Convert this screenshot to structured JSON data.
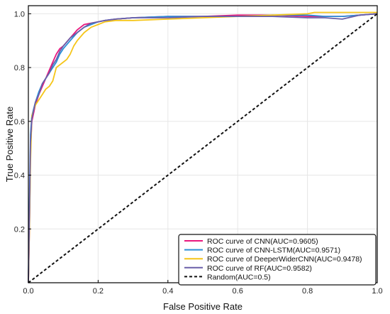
{
  "chart_data": {
    "type": "line",
    "title": "",
    "xlabel": "False Positive Rate",
    "ylabel": "True Positive Rate",
    "xlim": [
      0,
      1
    ],
    "ylim": [
      0,
      1.03
    ],
    "xticks": [
      "0.0",
      "0.2",
      "0.4",
      "0.6",
      "0.8",
      "1.0"
    ],
    "yticks": [
      "0.2",
      "0.4",
      "0.6",
      "0.8",
      "1.0"
    ],
    "grid": true,
    "legend_position": "lower-right",
    "series": [
      {
        "name": "ROC curve of CNN(AUC=0.9605)",
        "color": "#e8177e",
        "dash": "solid",
        "x": [
          0,
          0.003,
          0.006,
          0.01,
          0.02,
          0.03,
          0.04,
          0.05,
          0.06,
          0.07,
          0.08,
          0.09,
          0.1,
          0.12,
          0.14,
          0.16,
          0.18,
          0.2,
          0.22,
          0.25,
          0.3,
          0.4,
          0.5,
          0.6,
          0.7,
          0.8,
          0.85,
          0.9,
          0.95,
          1.0
        ],
        "y": [
          0,
          0.2,
          0.5,
          0.6,
          0.66,
          0.7,
          0.73,
          0.76,
          0.79,
          0.82,
          0.85,
          0.87,
          0.88,
          0.91,
          0.94,
          0.96,
          0.965,
          0.97,
          0.975,
          0.98,
          0.985,
          0.99,
          0.99,
          0.995,
          0.995,
          0.99,
          0.99,
          0.99,
          0.995,
          1.0
        ]
      },
      {
        "name": "ROC curve of CNN-LSTM(AUC=0.9571)",
        "color": "#2a8fd8",
        "dash": "solid",
        "x": [
          0,
          0.003,
          0.006,
          0.01,
          0.02,
          0.03,
          0.04,
          0.05,
          0.06,
          0.07,
          0.08,
          0.09,
          0.1,
          0.12,
          0.14,
          0.16,
          0.18,
          0.2,
          0.22,
          0.25,
          0.3,
          0.4,
          0.5,
          0.6,
          0.7,
          0.8,
          0.85,
          0.9,
          0.95,
          1.0
        ],
        "y": [
          0,
          0.3,
          0.55,
          0.62,
          0.67,
          0.71,
          0.74,
          0.76,
          0.78,
          0.8,
          0.82,
          0.85,
          0.87,
          0.9,
          0.93,
          0.95,
          0.96,
          0.97,
          0.975,
          0.98,
          0.985,
          0.99,
          0.99,
          0.99,
          0.995,
          0.995,
          0.99,
          0.99,
          0.995,
          1.0
        ]
      },
      {
        "name": "ROC curve of DeeperWiderCNN(AUC=0.9478)",
        "color": "#f5c518",
        "dash": "solid",
        "x": [
          0,
          0.003,
          0.006,
          0.01,
          0.02,
          0.03,
          0.04,
          0.05,
          0.06,
          0.07,
          0.08,
          0.09,
          0.1,
          0.11,
          0.12,
          0.13,
          0.14,
          0.16,
          0.18,
          0.2,
          0.22,
          0.25,
          0.3,
          0.4,
          0.5,
          0.6,
          0.7,
          0.8,
          0.82,
          0.85,
          0.9,
          0.95,
          1.0
        ],
        "y": [
          0,
          0.2,
          0.45,
          0.62,
          0.66,
          0.68,
          0.7,
          0.72,
          0.73,
          0.75,
          0.8,
          0.81,
          0.82,
          0.83,
          0.85,
          0.88,
          0.9,
          0.93,
          0.95,
          0.96,
          0.97,
          0.975,
          0.975,
          0.98,
          0.985,
          0.99,
          0.995,
          1.0,
          1.005,
          1.005,
          1.005,
          1.005,
          1.005
        ]
      },
      {
        "name": "ROC curve of RF(AUC=0.9582)",
        "color": "#6a5fa8",
        "dash": "solid",
        "x": [
          0,
          0.003,
          0.006,
          0.01,
          0.02,
          0.03,
          0.04,
          0.05,
          0.06,
          0.07,
          0.08,
          0.09,
          0.1,
          0.12,
          0.14,
          0.16,
          0.18,
          0.2,
          0.22,
          0.25,
          0.3,
          0.4,
          0.5,
          0.6,
          0.7,
          0.8,
          0.85,
          0.9,
          0.95,
          1.0
        ],
        "y": [
          0,
          0.25,
          0.52,
          0.61,
          0.67,
          0.7,
          0.74,
          0.76,
          0.78,
          0.81,
          0.83,
          0.86,
          0.88,
          0.91,
          0.93,
          0.95,
          0.965,
          0.97,
          0.975,
          0.98,
          0.985,
          0.985,
          0.99,
          0.99,
          0.99,
          0.985,
          0.985,
          0.98,
          0.995,
          1.0
        ]
      },
      {
        "name": "Random(AUC=0.5)",
        "color": "#111111",
        "dash": "dashed",
        "x": [
          0,
          1
        ],
        "y": [
          0,
          1
        ]
      }
    ]
  }
}
